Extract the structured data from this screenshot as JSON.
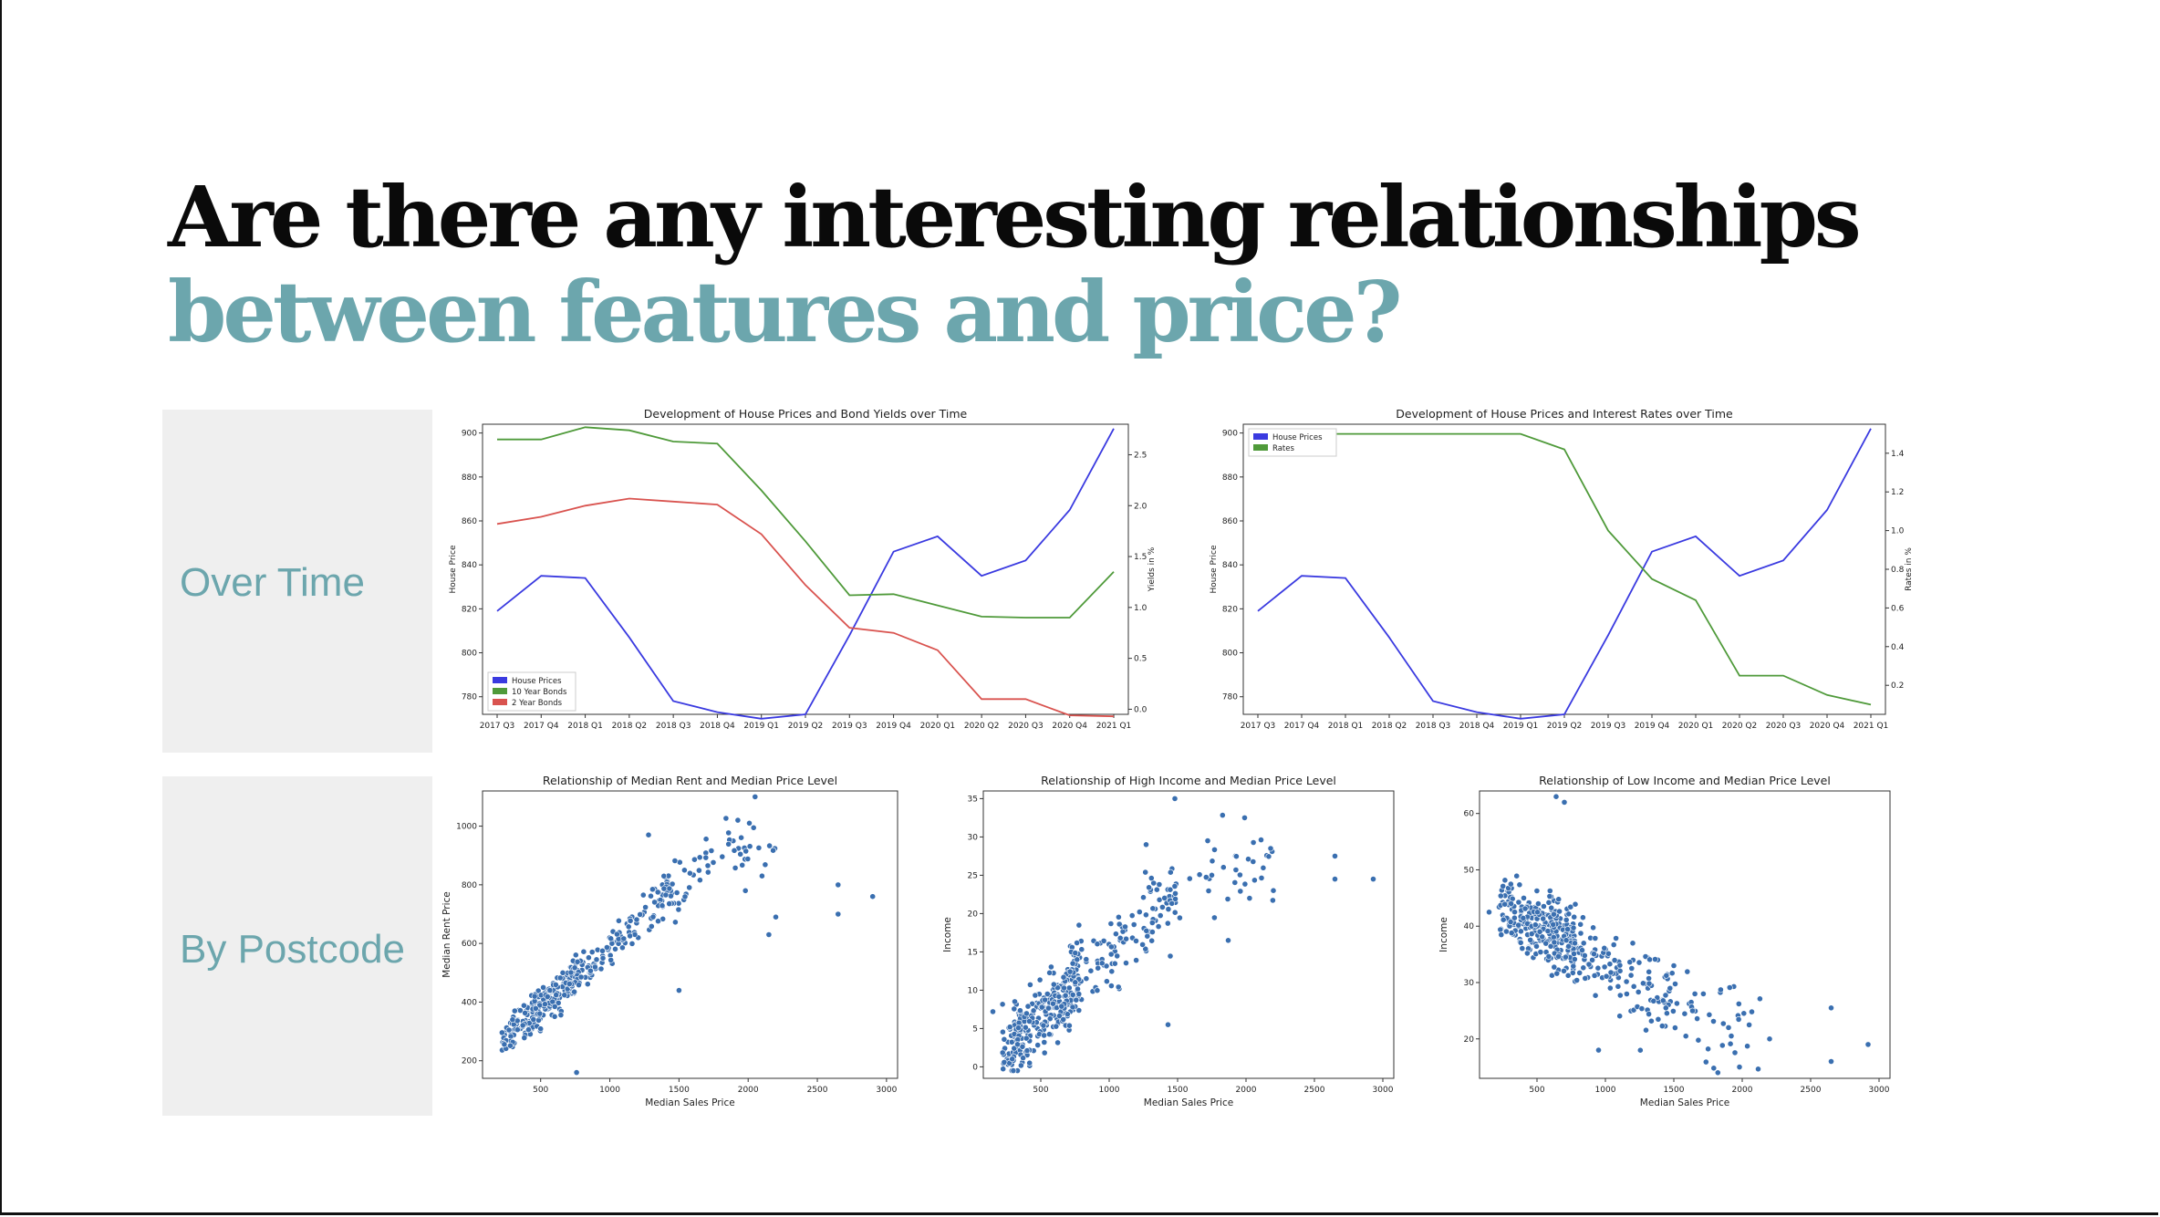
{
  "title": {
    "line1": "Are there any interesting relationships",
    "line2": "between features and price?"
  },
  "rows": {
    "over_time": "Over Time",
    "by_postcode": "By Postcode"
  },
  "colors": {
    "accent": "#6ca6ad",
    "house": "#3a3ae0",
    "bond10": "#4f9a3a",
    "bond2": "#d9534f",
    "scatter": "#3a6fb0"
  },
  "chart_data": [
    {
      "id": "bond",
      "type": "line",
      "title": "Development of House Prices and Bond Yields over Time",
      "categories": [
        "2017 Q3",
        "2017 Q4",
        "2018 Q1",
        "2018 Q2",
        "2018 Q3",
        "2018 Q4",
        "2019 Q1",
        "2019 Q2",
        "2019 Q3",
        "2019 Q4",
        "2020 Q1",
        "2020 Q2",
        "2020 Q3",
        "2020 Q4",
        "2021 Q1"
      ],
      "ylabel": "House Price",
      "y2label": "Yields in %",
      "ylim": [
        772,
        904
      ],
      "y2lim": [
        -0.05,
        2.8
      ],
      "yticks": [
        780,
        800,
        820,
        840,
        860,
        880,
        900
      ],
      "y2ticks": [
        0.0,
        0.5,
        1.0,
        1.5,
        2.0,
        2.5
      ],
      "y2ticklabels": [
        "0.0",
        "0.5",
        "1.0",
        "1.5",
        "2.0",
        "2.5"
      ],
      "legend": "bottom-left",
      "series": [
        {
          "name": "House Prices",
          "axis": "left",
          "color": "#3a3ae0",
          "values": [
            819,
            835,
            834,
            807,
            778,
            773,
            770,
            772,
            808,
            846,
            853,
            835,
            842,
            865,
            902
          ]
        },
        {
          "name": "10 Year Bonds",
          "axis": "right",
          "color": "#4f9a3a",
          "values": [
            2.65,
            2.65,
            2.77,
            2.74,
            2.63,
            2.61,
            2.15,
            1.65,
            1.12,
            1.13,
            1.02,
            0.91,
            0.9,
            0.9,
            1.35
          ]
        },
        {
          "name": "2 Year Bonds",
          "axis": "right",
          "color": "#d9534f",
          "values": [
            1.82,
            1.89,
            2.0,
            2.07,
            2.04,
            2.01,
            1.72,
            1.22,
            0.8,
            0.75,
            0.58,
            0.1,
            0.1,
            -0.06,
            -0.07
          ]
        }
      ]
    },
    {
      "id": "rates",
      "type": "line",
      "title": "Development of House Prices and Interest Rates over Time",
      "categories": [
        "2017 Q3",
        "2017 Q4",
        "2018 Q1",
        "2018 Q2",
        "2018 Q3",
        "2018 Q4",
        "2019 Q1",
        "2019 Q2",
        "2019 Q3",
        "2019 Q4",
        "2020 Q1",
        "2020 Q2",
        "2020 Q3",
        "2020 Q4",
        "2021 Q1"
      ],
      "ylabel": "House Price",
      "y2label": "Rates in %",
      "ylim": [
        772,
        904
      ],
      "y2lim": [
        0.05,
        1.55
      ],
      "yticks": [
        780,
        800,
        820,
        840,
        860,
        880,
        900
      ],
      "y2ticks": [
        0.2,
        0.4,
        0.6,
        0.8,
        1.0,
        1.2,
        1.4
      ],
      "y2ticklabels": [
        "0.2",
        "0.4",
        "0.6",
        "0.8",
        "1.0",
        "1.2",
        "1.4"
      ],
      "legend": "top-left",
      "series": [
        {
          "name": "House Prices",
          "axis": "left",
          "color": "#3a3ae0",
          "values": [
            819,
            835,
            834,
            807,
            778,
            773,
            770,
            772,
            808,
            846,
            853,
            835,
            842,
            865,
            902
          ]
        },
        {
          "name": "Rates",
          "axis": "right",
          "color": "#4f9a3a",
          "values": [
            1.5,
            1.5,
            1.5,
            1.5,
            1.5,
            1.5,
            1.5,
            1.42,
            1.0,
            0.75,
            0.64,
            0.25,
            0.25,
            0.15,
            0.1
          ]
        }
      ]
    },
    {
      "id": "rent",
      "type": "scatter",
      "title": "Relationship of Median Rent and Median Price Level",
      "xlabel": "Median Sales Price",
      "ylabel": "Median Rent Price",
      "xlim": [
        80,
        3080
      ],
      "ylim": [
        140,
        1120
      ],
      "xticks": [
        500,
        1000,
        1500,
        2000,
        2500,
        3000
      ],
      "yticks": [
        200,
        400,
        600,
        800,
        1000
      ],
      "base": {
        "x0": 150,
        "y0": 230,
        "slope": 0.42,
        "ymax": 950,
        "noise": 45
      },
      "n": 420,
      "seed": 11,
      "extra": [
        [
          2050,
          1100
        ],
        [
          1280,
          970
        ],
        [
          2650,
          800
        ],
        [
          2650,
          700
        ],
        [
          2900,
          760
        ],
        [
          2100,
          830
        ],
        [
          2200,
          690
        ],
        [
          1500,
          440
        ],
        [
          760,
          160
        ],
        [
          2150,
          630
        ],
        [
          1980,
          780
        ],
        [
          1540,
          850
        ]
      ]
    },
    {
      "id": "high",
      "type": "scatter",
      "title": "Relationship of High Income and Median Price Level",
      "xlabel": "Median Sales Price",
      "ylabel": "Income",
      "xlim": [
        80,
        3080
      ],
      "ylim": [
        -1.5,
        36
      ],
      "xticks": [
        500,
        1000,
        1500,
        2000,
        2500,
        3000
      ],
      "yticks": [
        0,
        5,
        10,
        15,
        20,
        25,
        30,
        35
      ],
      "base": {
        "x0": 200,
        "y0": 2,
        "slope": 0.016,
        "ymax": 26,
        "noise": 3.4
      },
      "n": 420,
      "seed": 23,
      "extra": [
        [
          1480,
          35
        ],
        [
          1990,
          32.5
        ],
        [
          2650,
          27.5
        ],
        [
          2650,
          24.5
        ],
        [
          2930,
          24.5
        ],
        [
          2200,
          23
        ],
        [
          1270,
          29
        ],
        [
          1870,
          16.5
        ],
        [
          1430,
          5.5
        ],
        [
          150,
          7.2
        ],
        [
          1720,
          29.5
        ],
        [
          2180,
          28.5
        ]
      ]
    },
    {
      "id": "low",
      "type": "scatter",
      "title": "Relationship of Low Income and Median Price Level",
      "xlabel": "Median Sales Price",
      "ylabel": "Income",
      "xlim": [
        80,
        3080
      ],
      "ylim": [
        13,
        64
      ],
      "xticks": [
        500,
        1000,
        1500,
        2000,
        2500,
        3000
      ],
      "yticks": [
        20,
        30,
        40,
        50,
        60
      ],
      "base": {
        "x0": 200,
        "y0": 44,
        "slope": -0.013,
        "ymax": 60,
        "noise": 4.5
      },
      "n": 420,
      "seed": 37,
      "extra": [
        [
          700,
          62
        ],
        [
          640,
          63
        ],
        [
          2650,
          25.5
        ],
        [
          2650,
          16
        ],
        [
          2920,
          19
        ],
        [
          1980,
          15
        ],
        [
          150,
          42.5
        ],
        [
          1900,
          22
        ],
        [
          2200,
          20
        ],
        [
          1500,
          33
        ],
        [
          1200,
          37
        ],
        [
          950,
          18
        ]
      ]
    }
  ]
}
